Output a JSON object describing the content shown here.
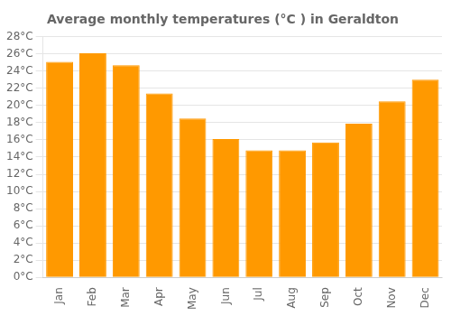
{
  "chart_data": {
    "type": "bar",
    "title": "Average monthly temperatures (°C ) in Geraldton",
    "categories": [
      "Jan",
      "Feb",
      "Mar",
      "Apr",
      "May",
      "Jun",
      "Jul",
      "Aug",
      "Sep",
      "Oct",
      "Nov",
      "Dec"
    ],
    "values": [
      25.1,
      26.1,
      24.7,
      21.4,
      18.5,
      16.1,
      14.8,
      14.8,
      15.7,
      17.9,
      20.5,
      23.0
    ],
    "color": "#FF9900",
    "ylim": [
      0,
      28
    ],
    "yticks": [
      {
        "value": 0,
        "label": "0°C"
      },
      {
        "value": 2,
        "label": "2°C"
      },
      {
        "value": 4,
        "label": "4°C"
      },
      {
        "value": 6,
        "label": "6°C"
      },
      {
        "value": 8,
        "label": "8°C"
      },
      {
        "value": 10,
        "label": "10°C"
      },
      {
        "value": 12,
        "label": "12°C"
      },
      {
        "value": 14,
        "label": "14°C"
      },
      {
        "value": 16,
        "label": "16°C"
      },
      {
        "value": 18,
        "label": "18°C"
      },
      {
        "value": 20,
        "label": "20°C"
      },
      {
        "value": 22,
        "label": "22°C"
      },
      {
        "value": 24,
        "label": "24°C"
      },
      {
        "value": 26,
        "label": "26°C"
      },
      {
        "value": 28,
        "label": "28°C"
      }
    ],
    "grid": true
  }
}
